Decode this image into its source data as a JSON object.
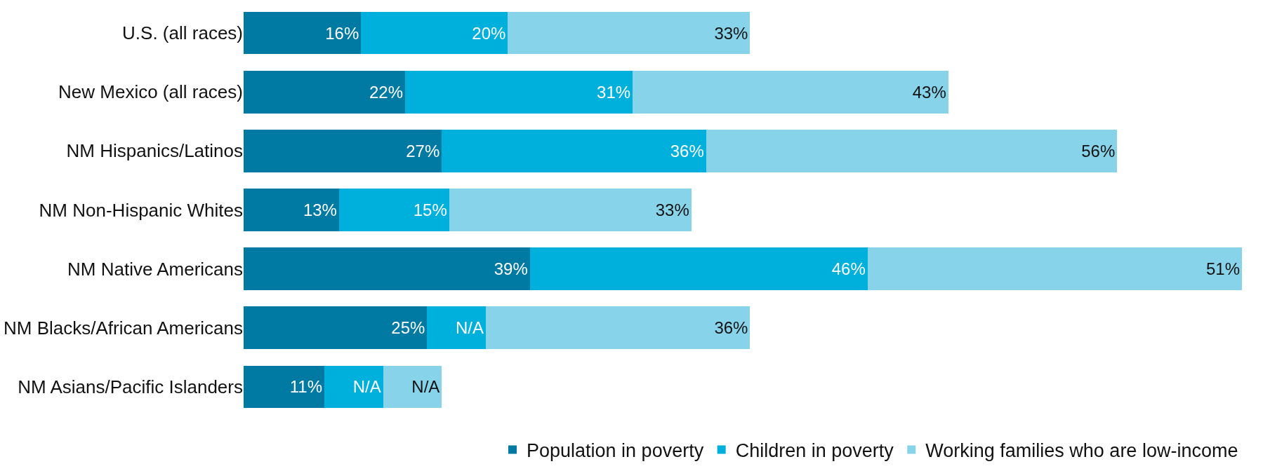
{
  "chart_data": {
    "type": "bar",
    "orientation": "horizontal",
    "stacked": true,
    "categories": [
      "U.S. (all races)",
      "New Mexico (all races)",
      "NM Hispanics/Latinos",
      "NM Non-Hispanic Whites",
      "NM Native Americans",
      "NM Blacks/African Americans",
      "NM Asians/Pacific Islanders"
    ],
    "series": [
      {
        "name": "Population in poverty",
        "color": "#0079a3",
        "values": [
          16,
          22,
          27,
          13,
          39,
          25,
          11
        ],
        "value_labels": [
          "16%",
          "22%",
          "27%",
          "13%",
          "39%",
          "25%",
          "11%"
        ]
      },
      {
        "name": "Children in poverty",
        "color": "#00b0dc",
        "values": [
          20,
          31,
          36,
          15,
          46,
          8,
          8
        ],
        "value_labels": [
          "20%",
          "31%",
          "36%",
          "15%",
          "46%",
          "N/A",
          "N/A"
        ]
      },
      {
        "name": "Working families who are low-income",
        "color": "#87d3ea",
        "values": [
          33,
          43,
          56,
          33,
          51,
          36,
          8
        ],
        "value_labels": [
          "33%",
          "43%",
          "56%",
          "33%",
          "51%",
          "36%",
          "N/A"
        ]
      }
    ],
    "xlim": [
      0,
      136
    ],
    "legend": "bottom"
  }
}
